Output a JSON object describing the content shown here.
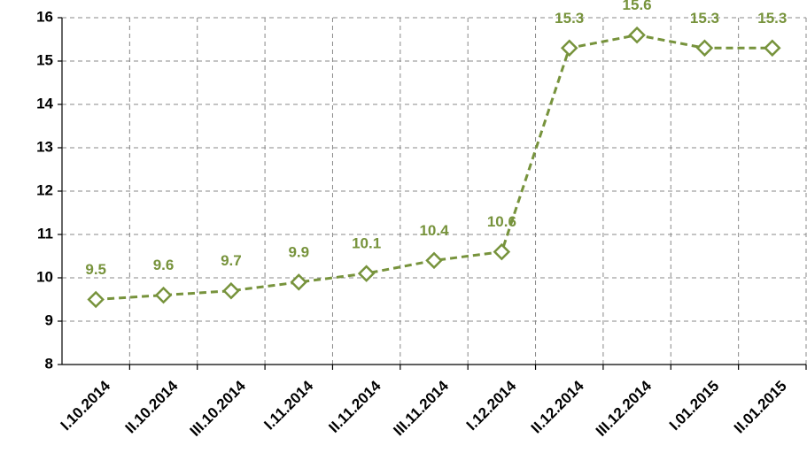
{
  "chart_data": {
    "type": "line",
    "categories": [
      "I.10.2014",
      "II.10.2014",
      "III.10.2014",
      "I.11.2014",
      "II.11.2014",
      "III.11.2014",
      "I.12.2014",
      "II.12.2014",
      "III.12.2014",
      "I.01.2015",
      "II.01.2015"
    ],
    "values": [
      9.5,
      9.6,
      9.7,
      9.9,
      10.1,
      10.4,
      10.6,
      15.3,
      15.6,
      15.3,
      15.3
    ],
    "color": "#77933c",
    "ylim": [
      8,
      16
    ],
    "yticks": [
      8,
      9,
      10,
      11,
      12,
      13,
      14,
      15,
      16
    ],
    "grid": true
  }
}
